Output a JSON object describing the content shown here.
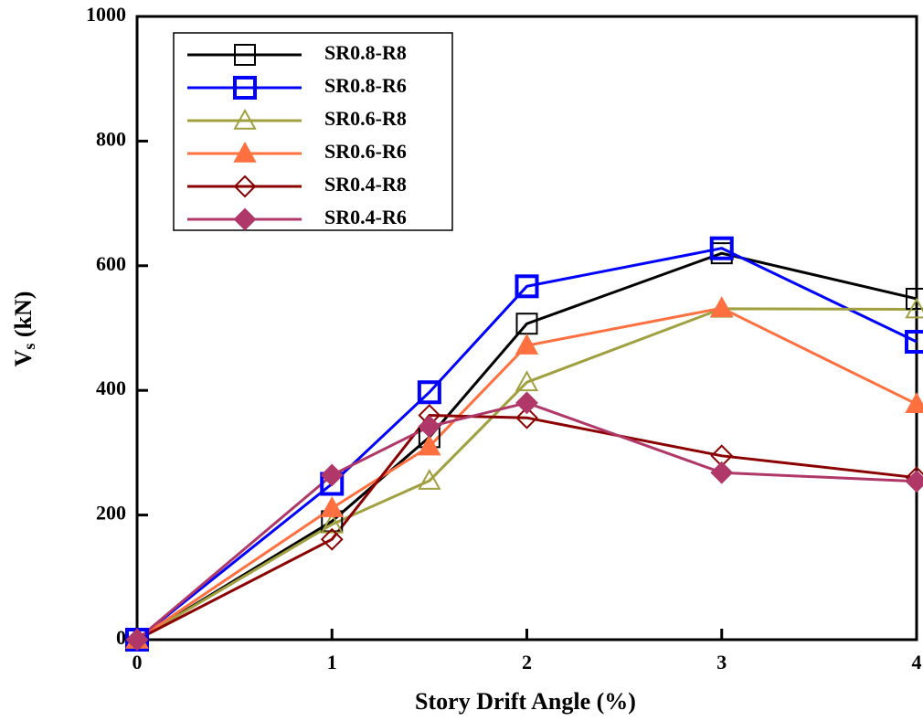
{
  "chart_data": {
    "type": "line",
    "xlabel": "Story Drift Angle (%)",
    "ylabel_parts": [
      "V",
      "s",
      " (kN)"
    ],
    "x": [
      0,
      1,
      1.5,
      2,
      3,
      4
    ],
    "xlim": [
      0,
      4
    ],
    "xticks": [
      0,
      1,
      2,
      3,
      4
    ],
    "ylim": [
      0,
      1000
    ],
    "yticks": [
      0,
      200,
      400,
      600,
      800,
      1000
    ],
    "legend": "upper left",
    "series": [
      {
        "name": "SR0.8-R8",
        "color": "#000000",
        "marker": "square",
        "filled": false,
        "values": [
          0,
          190,
          325,
          507,
          620,
          547
        ]
      },
      {
        "name": "SR0.8-R6",
        "color": "#0000ff",
        "marker": "square",
        "filled": false,
        "values": [
          0,
          250,
          397,
          567,
          628,
          478
        ]
      },
      {
        "name": "SR0.6-R8",
        "color": "#a0a040",
        "marker": "triangle",
        "filled": false,
        "values": [
          0,
          185,
          255,
          413,
          531,
          530
        ]
      },
      {
        "name": "SR0.6-R6",
        "color": "#ff7040",
        "marker": "triangle",
        "filled": true,
        "values": [
          0,
          211,
          310,
          472,
          532,
          378
        ]
      },
      {
        "name": "SR0.4-R8",
        "color": "#8b0000",
        "marker": "diamond",
        "filled": false,
        "values": [
          0,
          161,
          360,
          356,
          295,
          260
        ]
      },
      {
        "name": "SR0.4-R6",
        "color": "#b03868",
        "marker": "diamond",
        "filled": true,
        "values": [
          0,
          264,
          342,
          380,
          268,
          254
        ]
      }
    ]
  }
}
